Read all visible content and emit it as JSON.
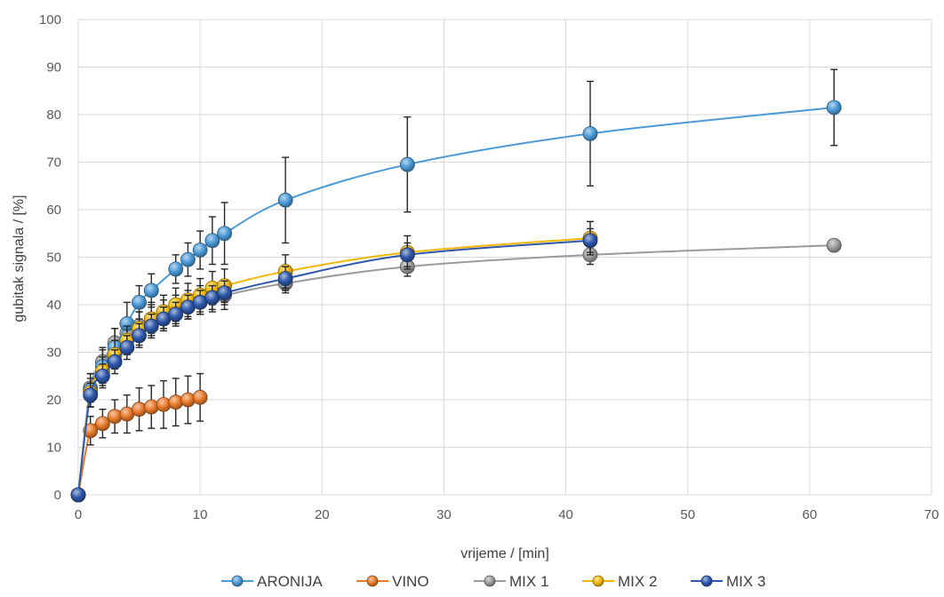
{
  "chart_data": {
    "type": "scatter",
    "xlabel": "vrijeme / [min]",
    "ylabel": "gubitak signala / [%]",
    "xlim": [
      0,
      70
    ],
    "ylim": [
      0,
      100
    ],
    "x_ticks": [
      "0",
      "10",
      "20",
      "30",
      "40",
      "50",
      "60",
      "70"
    ],
    "y_ticks": [
      "0",
      "10",
      "20",
      "30",
      "40",
      "50",
      "60",
      "70",
      "80",
      "90",
      "100"
    ],
    "grid": true,
    "legend_position": "bottom",
    "series": [
      {
        "name": "ARONIJA",
        "color": "#4a9ad8",
        "x": [
          0,
          1,
          2,
          3,
          4,
          5,
          6,
          8,
          9,
          10,
          11,
          12,
          17,
          27,
          42,
          62
        ],
        "y": [
          0,
          22,
          27,
          31,
          36,
          40.5,
          43,
          47.5,
          49.5,
          51.5,
          53.5,
          55,
          62,
          69.5,
          76,
          81.5
        ],
        "err": [
          0,
          3.5,
          3.5,
          4,
          4.5,
          3.5,
          3.5,
          3,
          3.5,
          4,
          5,
          6.5,
          9,
          10,
          11,
          8
        ]
      },
      {
        "name": "VINO",
        "color": "#e8792a",
        "x": [
          0,
          1,
          2,
          3,
          4,
          5,
          6,
          7,
          8,
          9,
          10
        ],
        "y": [
          0,
          13.5,
          15,
          16.5,
          17,
          18,
          18.5,
          19,
          19.5,
          20,
          20.5
        ],
        "err": [
          0,
          3,
          3,
          3.5,
          4,
          4.5,
          4.5,
          5,
          5,
          5,
          5
        ]
      },
      {
        "name": "MIX 1",
        "color": "#9b9b9b",
        "x": [
          0,
          1,
          2,
          3,
          4,
          5,
          6,
          7,
          8,
          9,
          10,
          11,
          12,
          17,
          27,
          42,
          62
        ],
        "y": [
          0,
          22.5,
          28,
          32,
          34,
          35.5,
          37,
          38,
          39,
          40,
          41,
          41.5,
          42,
          44.5,
          48,
          50.5,
          52.5
        ],
        "err": [
          0,
          3,
          3,
          3,
          3,
          3,
          3,
          3,
          3,
          3,
          3,
          3,
          3,
          2,
          2,
          2,
          0
        ]
      },
      {
        "name": "MIX 2",
        "color": "#f2b705",
        "x": [
          0,
          1,
          2,
          3,
          4,
          5,
          6,
          7,
          8,
          9,
          10,
          11,
          12,
          17,
          27,
          42
        ],
        "y": [
          0,
          21.5,
          26,
          29.5,
          32.5,
          35,
          37,
          38.5,
          40,
          41,
          42,
          43.5,
          44,
          47,
          51,
          54
        ],
        "err": [
          0,
          3,
          3,
          3,
          3,
          3.5,
          3.5,
          3.5,
          3.5,
          3.5,
          3.5,
          3.5,
          3.5,
          3.5,
          3.5,
          3.5
        ]
      },
      {
        "name": "MIX 3",
        "color": "#2e57ab",
        "x": [
          0,
          1,
          2,
          3,
          4,
          5,
          6,
          7,
          8,
          9,
          10,
          11,
          12,
          17,
          27,
          42
        ],
        "y": [
          0,
          21,
          25,
          28,
          31,
          33.5,
          35.5,
          37,
          38,
          39.5,
          40.5,
          41.5,
          42.5,
          45.5,
          50.5,
          53.5
        ],
        "err": [
          0,
          2.5,
          2.5,
          2.5,
          2.5,
          2.5,
          2.5,
          2.5,
          2.5,
          2.5,
          2.5,
          2.5,
          2.5,
          2.5,
          2.5,
          2.5
        ]
      }
    ]
  }
}
